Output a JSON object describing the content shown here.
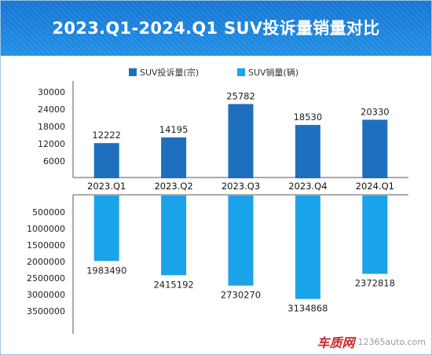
{
  "title": "2023.Q1-2024.Q1 SUV投诉量销量对比",
  "colors": {
    "complaints": "#1f6fbf",
    "sales": "#1aa3e8",
    "title_bg": "#1e88e0",
    "axis": "#555555"
  },
  "watermark": {
    "brand": "车质网",
    "url": "12365auto.com"
  },
  "chart_data": [
    {
      "type": "bar",
      "categories": [
        "2023.Q1",
        "2023.Q2",
        "2023.Q3",
        "2023.Q4",
        "2024.Q1"
      ],
      "series": [
        {
          "name": "SUV投诉量(宗)",
          "values": [
            12222,
            14195,
            25782,
            18530,
            20330
          ]
        }
      ],
      "ylim": [
        0,
        30000
      ],
      "yticks": [
        6000,
        12000,
        18000,
        24000,
        30000
      ],
      "data_labels": [
        "12222",
        "14195",
        "25782",
        "18530",
        "20330"
      ],
      "legend": "top",
      "grid": false
    },
    {
      "type": "bar",
      "orientation": "downward",
      "categories": [
        "2023.Q1",
        "2023.Q2",
        "2023.Q3",
        "2023.Q4",
        "2024.Q1"
      ],
      "series": [
        {
          "name": "SUV销量(辆)",
          "values": [
            1983490,
            2415192,
            2730270,
            3134868,
            2372818
          ]
        }
      ],
      "ylim": [
        0,
        3500000
      ],
      "yticks": [
        500000,
        1000000,
        1500000,
        2000000,
        2500000,
        3000000,
        3500000
      ],
      "data_labels": [
        "1983490",
        "2415192",
        "2730270",
        "3134868",
        "2372818"
      ],
      "legend": "top",
      "grid": false
    }
  ]
}
